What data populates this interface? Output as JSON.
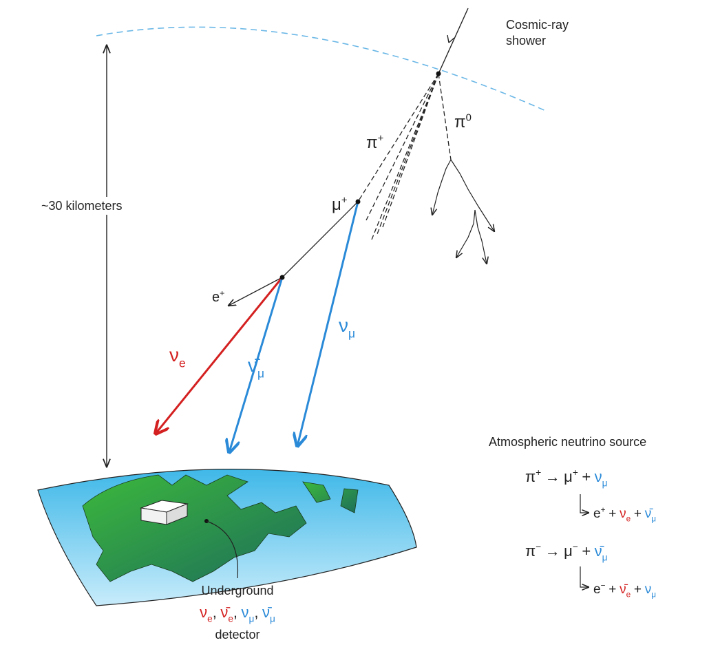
{
  "shower": [
    "Cosmic-ray",
    "shower"
  ],
  "distance": "~30 kilometers",
  "particles": {
    "pi0": [
      {
        "b": "π",
        "sup": "0"
      }
    ],
    "pi_plus": [
      {
        "b": "π",
        "sup": "+"
      }
    ],
    "mu_plus": [
      {
        "b": "μ",
        "sup": "+"
      }
    ],
    "e_plus": [
      {
        "b": "e",
        "sup": "+"
      }
    ],
    "nu_e": [
      {
        "b": "ν",
        "sub": "e",
        "color": "#d42020"
      }
    ],
    "nubar_mu": [
      {
        "b": "ν̄",
        "sub": "μ",
        "color": "#2a8ad8"
      }
    ],
    "nu_mu": [
      {
        "b": "ν",
        "sub": "μ",
        "color": "#2a8ad8"
      }
    ]
  },
  "source": {
    "title": "Atmospheric neutrino source",
    "equations": [
      [
        {
          "b": "π",
          "sup": "+"
        },
        {
          "b": "→"
        },
        {
          "b": "μ",
          "sup": "+"
        },
        {
          "b": "+"
        },
        {
          "b": "ν",
          "sub": "μ",
          "color": "#2a8ad8"
        }
      ],
      [
        {
          "b": "e",
          "sup": "+"
        },
        {
          "b": "+"
        },
        {
          "b": "ν",
          "sub": "e",
          "color": "#d42020"
        },
        {
          "b": "+"
        },
        {
          "b": "ν̄",
          "sub": "μ",
          "color": "#2a8ad8"
        }
      ],
      [
        {
          "b": "π",
          "sup": "−"
        },
        {
          "b": "→"
        },
        {
          "b": "μ",
          "sup": "−"
        },
        {
          "b": "+"
        },
        {
          "b": "ν̄",
          "sub": "μ",
          "color": "#2a8ad8"
        }
      ],
      [
        {
          "b": "e",
          "sup": "−"
        },
        {
          "b": "+"
        },
        {
          "b": "ν̄",
          "sub": "e",
          "color": "#d42020"
        },
        {
          "b": "+"
        },
        {
          "b": "ν",
          "sub": "μ",
          "color": "#2a8ad8"
        }
      ]
    ]
  },
  "detector": {
    "above": "Underground",
    "species": [
      {
        "b": "ν",
        "sub": "e",
        "color": "#d42020"
      },
      {
        "b": ","
      },
      {
        "b": "ν̄",
        "sub": "e",
        "color": "#d42020"
      },
      {
        "b": ","
      },
      {
        "b": "ν",
        "sub": "μ",
        "color": "#2a8ad8"
      },
      {
        "b": ","
      },
      {
        "b": "ν̄",
        "sub": "μ",
        "color": "#2a8ad8"
      }
    ],
    "below": "detector"
  }
}
